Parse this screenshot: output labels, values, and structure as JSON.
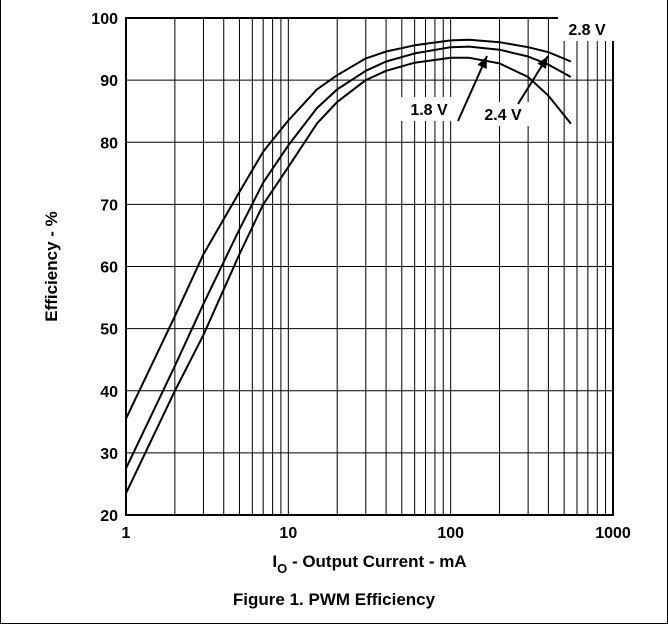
{
  "caption": "Figure 1. PWM Efficiency",
  "chart_data": {
    "type": "line",
    "title": "",
    "xlabel": {
      "main": "I",
      "subscript": "O",
      "rest": " - Output Current -  mA"
    },
    "ylabel": "Efficiency - %",
    "xscale": "log",
    "xlim": [
      1,
      1000
    ],
    "ylim": [
      20,
      100
    ],
    "xticks": [
      1,
      10,
      100,
      1000
    ],
    "xtick_labels": [
      "1",
      "10",
      "100",
      "1000"
    ],
    "yticks": [
      20,
      30,
      40,
      50,
      60,
      70,
      80,
      90,
      100
    ],
    "ytick_labels": [
      "20",
      "30",
      "40",
      "50",
      "60",
      "70",
      "80",
      "90",
      "100"
    ],
    "grid": true,
    "series": [
      {
        "name": "2.8 V",
        "x": [
          1,
          2,
          3,
          5,
          7,
          10,
          15,
          20,
          30,
          40,
          60,
          100,
          130,
          200,
          300,
          400,
          550
        ],
        "y": [
          23.5,
          40,
          49,
          62,
          70,
          76,
          83,
          86.5,
          90,
          91.5,
          92.8,
          93.6,
          93.6,
          92.7,
          90.5,
          87.5,
          83
        ]
      },
      {
        "name": "2.4 V",
        "x": [
          1,
          2,
          3,
          5,
          7,
          10,
          15,
          20,
          30,
          40,
          60,
          100,
          130,
          200,
          300,
          400,
          550
        ],
        "y": [
          27.5,
          44,
          54,
          66,
          73.5,
          79.5,
          85.5,
          88.5,
          91.5,
          93,
          94.3,
          95.3,
          95.4,
          94.9,
          93.8,
          92.5,
          90.5
        ]
      },
      {
        "name": "1.8 V",
        "x": [
          1,
          2,
          3,
          5,
          7,
          10,
          15,
          20,
          30,
          40,
          60,
          100,
          130,
          200,
          300,
          400,
          550
        ],
        "y": [
          35.5,
          52,
          62,
          72,
          78.5,
          83.5,
          88.5,
          90.8,
          93.5,
          94.6,
          95.6,
          96.4,
          96.5,
          96.1,
          95.3,
          94.5,
          93
        ]
      }
    ],
    "annotations": [
      "1.8 V",
      "2.4 V",
      "2.8 V"
    ]
  }
}
